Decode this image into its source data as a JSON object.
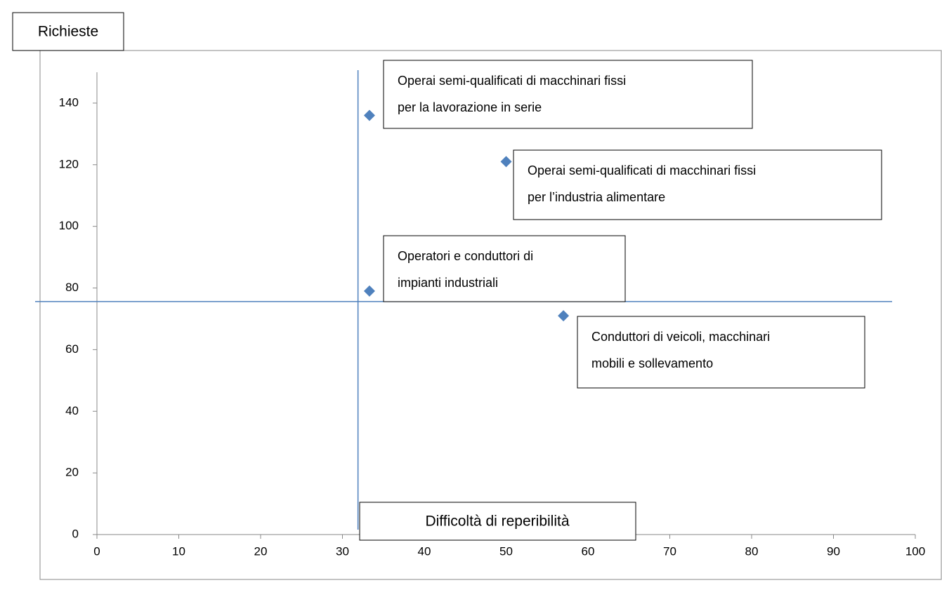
{
  "chart_data": {
    "type": "scatter",
    "ylabel": "Richieste",
    "xlabel": "Difficoltà di reperibilità",
    "xlim": [
      0,
      100
    ],
    "xticks": [
      0,
      10,
      20,
      30,
      40,
      50,
      60,
      70,
      80,
      90,
      100
    ],
    "ylim": [
      0,
      150
    ],
    "yticks": [
      0,
      20,
      40,
      60,
      80,
      100,
      120,
      140
    ],
    "color": "#4f81bd",
    "series": [
      {
        "x": [
          33.3,
          50,
          33.3,
          57
        ],
        "values": [
          136,
          121,
          79,
          71
        ]
      }
    ],
    "reference_lines": {
      "x": 31.9,
      "y": 75.6
    },
    "annotations": [
      {
        "lines": [
          "Operai semi-qualificati di macchinari fissi",
          "per la lavorazione in serie"
        ]
      },
      {
        "lines": [
          "Operai semi-qualificati di macchinari fissi",
          "per l’industria alimentare"
        ]
      },
      {
        "lines": [
          "Operatori e conduttori di",
          "impianti industriali"
        ]
      },
      {
        "lines": [
          "Conduttori di veicoli, macchinari",
          "mobili e sollevamento"
        ]
      }
    ]
  }
}
